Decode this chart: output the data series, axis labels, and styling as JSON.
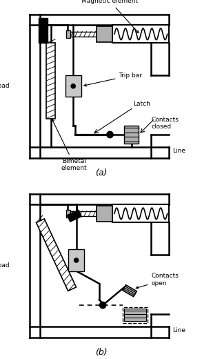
{
  "label_magnetic": "Magnetic element",
  "label_trip": "Trip bar",
  "label_latch": "Latch",
  "label_contacts_closed": "Contacts\nclosed",
  "label_contacts_open": "Contacts\nopen",
  "label_load": "Load",
  "label_line": "Line",
  "label_bimetal": "Bimetal\nelement",
  "title_a": "(a)",
  "title_b": "(b)",
  "gray1": "#b0b0b0",
  "gray2": "#c8c8c8",
  "black": "#000000",
  "white": "#ffffff"
}
